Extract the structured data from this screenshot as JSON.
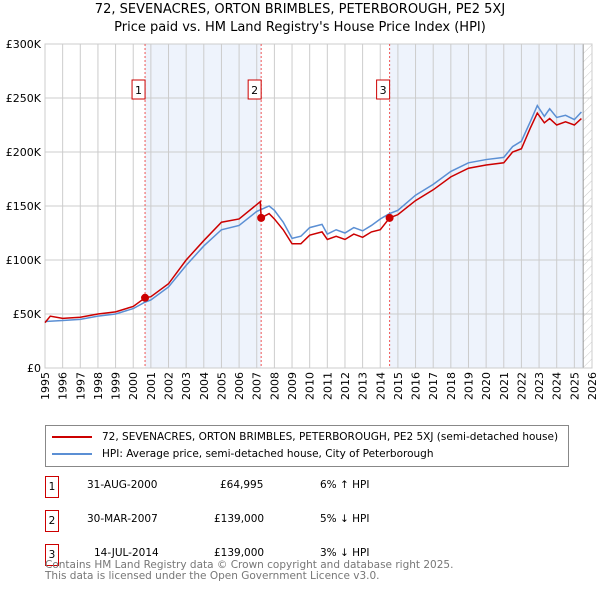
{
  "chart_data": {
    "type": "line",
    "title": "72, SEVENACRES, ORTON BRIMBLES, PETERBOROUGH, PE2 5XJ",
    "subtitle": "Price paid vs. HM Land Registry's House Price Index (HPI)",
    "xlim": [
      1995,
      2026
    ],
    "ylim": [
      0,
      300000
    ],
    "yticks": [
      {
        "v": 0,
        "l": "£0"
      },
      {
        "v": 50000,
        "l": "£50K"
      },
      {
        "v": 100000,
        "l": "£100K"
      },
      {
        "v": 150000,
        "l": "£150K"
      },
      {
        "v": 200000,
        "l": "£200K"
      },
      {
        "v": 250000,
        "l": "£250K"
      },
      {
        "v": 300000,
        "l": "£300K"
      }
    ],
    "xticks": [
      "1995",
      "1996",
      "1997",
      "1998",
      "1999",
      "2000",
      "2001",
      "2002",
      "2003",
      "2004",
      "2005",
      "2006",
      "2007",
      "2008",
      "2009",
      "2010",
      "2011",
      "2012",
      "2013",
      "2014",
      "2015",
      "2016",
      "2017",
      "2018",
      "2019",
      "2020",
      "2021",
      "2022",
      "2023",
      "2024",
      "2025",
      "2026"
    ],
    "grid": true,
    "future_from": 2025.5,
    "shaded_ranges": [
      [
        2000.67,
        2007.25
      ],
      [
        2014.53,
        2025.5
      ]
    ],
    "series": [
      {
        "name": "72, SEVENACRES, ORTON BRIMBLES, PETERBOROUGH, PE2 5XJ (semi-detached house)",
        "color": "#cc0000",
        "points": [
          [
            1995,
            42000
          ],
          [
            1995.3,
            48000
          ],
          [
            1996,
            46000
          ],
          [
            1997,
            47000
          ],
          [
            1998,
            50000
          ],
          [
            1999,
            52000
          ],
          [
            2000,
            57000
          ],
          [
            2000.67,
            64995
          ],
          [
            2001,
            66000
          ],
          [
            2002,
            78000
          ],
          [
            2003,
            100000
          ],
          [
            2004,
            118000
          ],
          [
            2005,
            135000
          ],
          [
            2006,
            138000
          ],
          [
            2007.2,
            154000
          ],
          [
            2007.25,
            139000
          ],
          [
            2007.7,
            143000
          ],
          [
            2008,
            138000
          ],
          [
            2008.5,
            128000
          ],
          [
            2009,
            115000
          ],
          [
            2009.5,
            115000
          ],
          [
            2010,
            123000
          ],
          [
            2010.7,
            126000
          ],
          [
            2011,
            119000
          ],
          [
            2011.5,
            122000
          ],
          [
            2012,
            119000
          ],
          [
            2012.5,
            124000
          ],
          [
            2013,
            121000
          ],
          [
            2013.5,
            126000
          ],
          [
            2014,
            128000
          ],
          [
            2014.53,
            139000
          ],
          [
            2015,
            142000
          ],
          [
            2016,
            155000
          ],
          [
            2017,
            165000
          ],
          [
            2018,
            177000
          ],
          [
            2019,
            185000
          ],
          [
            2020,
            188000
          ],
          [
            2021,
            190000
          ],
          [
            2021.5,
            200000
          ],
          [
            2022,
            203000
          ],
          [
            2022.5,
            222000
          ],
          [
            2022.9,
            236000
          ],
          [
            2023.3,
            227000
          ],
          [
            2023.6,
            231000
          ],
          [
            2024,
            225000
          ],
          [
            2024.5,
            228000
          ],
          [
            2025,
            225000
          ],
          [
            2025.4,
            231000
          ]
        ]
      },
      {
        "name": "HPI: Average price, semi-detached house, City of Peterborough",
        "color": "#5b8fd4",
        "points": [
          [
            1995,
            43000
          ],
          [
            1996,
            44000
          ],
          [
            1997,
            45000
          ],
          [
            1998,
            48000
          ],
          [
            1999,
            50000
          ],
          [
            2000,
            55000
          ],
          [
            2000.67,
            61000
          ],
          [
            2001,
            63000
          ],
          [
            2002,
            75000
          ],
          [
            2003,
            95000
          ],
          [
            2004,
            113000
          ],
          [
            2005,
            128000
          ],
          [
            2006,
            132000
          ],
          [
            2007,
            145000
          ],
          [
            2007.7,
            150000
          ],
          [
            2008,
            146000
          ],
          [
            2008.5,
            135000
          ],
          [
            2009,
            120000
          ],
          [
            2009.5,
            122000
          ],
          [
            2010,
            130000
          ],
          [
            2010.7,
            133000
          ],
          [
            2011,
            124000
          ],
          [
            2011.5,
            128000
          ],
          [
            2012,
            125000
          ],
          [
            2012.5,
            130000
          ],
          [
            2013,
            127000
          ],
          [
            2013.5,
            132000
          ],
          [
            2014,
            138000
          ],
          [
            2014.53,
            143000
          ],
          [
            2015,
            146000
          ],
          [
            2016,
            160000
          ],
          [
            2017,
            170000
          ],
          [
            2018,
            182000
          ],
          [
            2019,
            190000
          ],
          [
            2020,
            193000
          ],
          [
            2021,
            195000
          ],
          [
            2021.5,
            205000
          ],
          [
            2022,
            210000
          ],
          [
            2022.5,
            228000
          ],
          [
            2022.9,
            243000
          ],
          [
            2023.3,
            233000
          ],
          [
            2023.6,
            240000
          ],
          [
            2024,
            232000
          ],
          [
            2024.5,
            234000
          ],
          [
            2025,
            230000
          ],
          [
            2025.4,
            237000
          ]
        ]
      }
    ],
    "sales": [
      {
        "n": "1",
        "x": 2000.67,
        "date": "31-AUG-2000",
        "price": 64995,
        "price_label": "£64,995",
        "hpi": "6% ↑ HPI"
      },
      {
        "n": "2",
        "x": 2007.25,
        "date": "30-MAR-2007",
        "price": 139000,
        "price_label": "£139,000",
        "hpi": "5% ↓ HPI"
      },
      {
        "n": "3",
        "x": 2014.53,
        "date": "14-JUL-2014",
        "price": 139000,
        "price_label": "£139,000",
        "hpi": "3% ↓ HPI"
      }
    ]
  },
  "footer": [
    "Contains HM Land Registry data © Crown copyright and database right 2025.",
    "This data is licensed under the Open Government Licence v3.0."
  ]
}
